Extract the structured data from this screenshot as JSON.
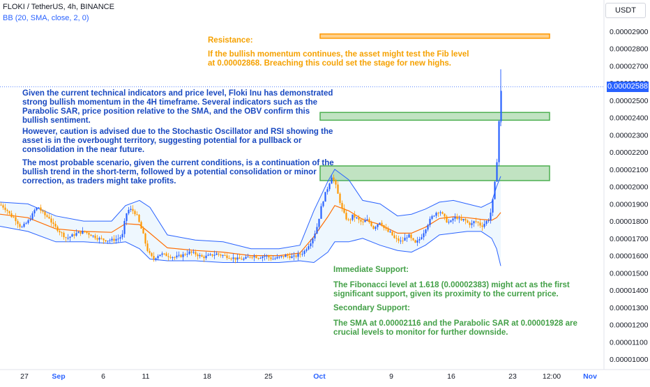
{
  "header": {
    "title": "FLOKI / TetherUS, 4h, BINANCE",
    "indicator": "BB (20, SMA, close, 2, 0)"
  },
  "currency": "USDT",
  "last_price": "0.00002588",
  "colors": {
    "up": "#2962ff",
    "down": "#ff9800",
    "bb_band": "#2962ff",
    "bb_basis": "#ff6d00",
    "bb_fill": "#e3f2fd",
    "resistance_zone": "#ff9800",
    "support_zone": "#4caf50",
    "text_blue": "#1848c0",
    "text_orange": "#f5a100",
    "text_green": "#43a047"
  },
  "annotations": {
    "resistance_title": "Resistance:",
    "resistance_text": "If the bullish momentum continues, the asset might test the Fib level\nat 0.00002868. Breaching this could set the stage for new highs.",
    "main_text_1": "Given the current technical indicators and price level, Floki Inu has demonstrated\nstrong bullish momentum in the 4H timeframe. Several indicators such as the\nParabolic SAR, price position relative to the SMA, and the OBV confirm this\nbullish sentiment.",
    "main_text_2": "However, caution is advised due to the Stochastic Oscillator and RSI showing the\nasset is in the overbought territory, suggesting potential for a pullback or\nconsolidation in the near future.",
    "main_text_3": "The most probable scenario, given the current conditions, is a continuation of the\nbullish trend in the short-term, followed by a potential consolidation or minor\ncorrection, as traders might take profits.",
    "immediate_support_title": "Immediate Support:",
    "immediate_support_text": "The Fibonacci level at 1.618 (0.00002383) might act as the first\nsignificant support, given its proximity to the current price.",
    "secondary_support_title": "Secondary Support:",
    "secondary_support_text": "The SMA at 0.00002116 and the Parabolic SAR at 0.00001928 are\ncrucial levels to monitor for further downside."
  },
  "chart_data": {
    "type": "candlestick",
    "y_axis_labels": [
      "0.00002900",
      "0.00002800",
      "0.00002700",
      "0.00002600",
      "0.00002500",
      "0.00002400",
      "0.00002300",
      "0.00002200",
      "0.00002100",
      "0.00002000",
      "0.00001900",
      "0.00001800",
      "0.00001700",
      "0.00001600",
      "0.00001500",
      "0.00001400",
      "0.00001300",
      "0.00001200",
      "0.00001100",
      "0.00001000"
    ],
    "y_axis_values": [
      2900,
      2800,
      2700,
      2600,
      2500,
      2400,
      2300,
      2200,
      2100,
      2000,
      1900,
      1800,
      1700,
      1600,
      1500,
      1400,
      1300,
      1200,
      1100,
      1000
    ],
    "x_axis_labels": [
      {
        "label": "27",
        "bold": false
      },
      {
        "label": "Sep",
        "bold": true
      },
      {
        "label": "6",
        "bold": false
      },
      {
        "label": "11",
        "bold": false
      },
      {
        "label": "18",
        "bold": false
      },
      {
        "label": "25",
        "bold": false
      },
      {
        "label": "Oct",
        "bold": true
      },
      {
        "label": "9",
        "bold": false
      },
      {
        "label": "16",
        "bold": false
      },
      {
        "label": "23",
        "bold": false
      },
      {
        "label": "12:00",
        "bold": false
      },
      {
        "label": "Nov",
        "bold": true
      }
    ],
    "y_range": [
      950,
      2960
    ],
    "zones": [
      {
        "name": "resistance",
        "from": 2860,
        "to": 2885,
        "color": "orange"
      },
      {
        "name": "support-1",
        "from": 2385,
        "to": 2430,
        "color": "green"
      },
      {
        "name": "support-2",
        "from": 2035,
        "to": 2120,
        "color": "green"
      }
    ],
    "price_path": [
      [
        0,
        1895
      ],
      [
        5,
        1880
      ],
      [
        10,
        1860
      ],
      [
        15,
        1830
      ],
      [
        20,
        1820
      ],
      [
        25,
        1790
      ],
      [
        30,
        1760
      ],
      [
        35,
        1780
      ],
      [
        40,
        1800
      ],
      [
        45,
        1830
      ],
      [
        50,
        1870
      ],
      [
        55,
        1880
      ],
      [
        60,
        1850
      ],
      [
        65,
        1830
      ],
      [
        70,
        1820
      ],
      [
        75,
        1780
      ],
      [
        80,
        1760
      ],
      [
        85,
        1740
      ],
      [
        90,
        1720
      ],
      [
        95,
        1700
      ],
      [
        100,
        1710
      ],
      [
        110,
        1730
      ],
      [
        120,
        1740
      ],
      [
        130,
        1720
      ],
      [
        140,
        1700
      ],
      [
        150,
        1690
      ],
      [
        160,
        1690
      ],
      [
        170,
        1700
      ],
      [
        175,
        1720
      ],
      [
        180,
        1840
      ],
      [
        185,
        1870
      ],
      [
        190,
        1860
      ],
      [
        195,
        1840
      ],
      [
        200,
        1780
      ],
      [
        205,
        1720
      ],
      [
        210,
        1640
      ],
      [
        215,
        1600
      ],
      [
        220,
        1580
      ],
      [
        225,
        1600
      ],
      [
        230,
        1610
      ],
      [
        240,
        1600
      ],
      [
        250,
        1590
      ],
      [
        260,
        1600
      ],
      [
        270,
        1620
      ],
      [
        280,
        1610
      ],
      [
        290,
        1590
      ],
      [
        300,
        1600
      ],
      [
        310,
        1610
      ],
      [
        320,
        1600
      ],
      [
        330,
        1590
      ],
      [
        340,
        1580
      ],
      [
        350,
        1580
      ],
      [
        360,
        1600
      ],
      [
        370,
        1590
      ],
      [
        380,
        1600
      ],
      [
        390,
        1580
      ],
      [
        400,
        1590
      ],
      [
        410,
        1600
      ],
      [
        420,
        1590
      ],
      [
        430,
        1610
      ],
      [
        435,
        1620
      ],
      [
        440,
        1650
      ],
      [
        445,
        1680
      ],
      [
        450,
        1720
      ],
      [
        455,
        1780
      ],
      [
        460,
        1880
      ],
      [
        465,
        1950
      ],
      [
        470,
        2000
      ],
      [
        475,
        2060
      ],
      [
        480,
        2020
      ],
      [
        485,
        1940
      ],
      [
        490,
        1870
      ],
      [
        495,
        1820
      ],
      [
        500,
        1800
      ],
      [
        505,
        1830
      ],
      [
        510,
        1820
      ],
      [
        515,
        1800
      ],
      [
        520,
        1790
      ],
      [
        525,
        1810
      ],
      [
        530,
        1790
      ],
      [
        535,
        1760
      ],
      [
        540,
        1780
      ],
      [
        545,
        1800
      ],
      [
        550,
        1760
      ],
      [
        555,
        1740
      ],
      [
        560,
        1730
      ],
      [
        565,
        1700
      ],
      [
        570,
        1690
      ],
      [
        575,
        1680
      ],
      [
        580,
        1700
      ],
      [
        585,
        1720
      ],
      [
        590,
        1690
      ],
      [
        595,
        1670
      ],
      [
        600,
        1690
      ],
      [
        605,
        1720
      ],
      [
        610,
        1760
      ],
      [
        615,
        1800
      ],
      [
        620,
        1830
      ],
      [
        625,
        1850
      ],
      [
        630,
        1860
      ],
      [
        635,
        1830
      ],
      [
        640,
        1800
      ],
      [
        645,
        1790
      ],
      [
        650,
        1820
      ],
      [
        655,
        1820
      ],
      [
        660,
        1800
      ],
      [
        665,
        1810
      ],
      [
        670,
        1790
      ],
      [
        675,
        1780
      ],
      [
        680,
        1800
      ],
      [
        685,
        1790
      ],
      [
        690,
        1770
      ],
      [
        695,
        1790
      ],
      [
        700,
        1810
      ],
      [
        703,
        1850
      ],
      [
        706,
        1920
      ],
      [
        709,
        2020
      ],
      [
        712,
        2150
      ],
      [
        715,
        2380
      ],
      [
        718,
        2550
      ],
      [
        720,
        2600
      ]
    ],
    "bb_upper": [
      [
        0,
        1910
      ],
      [
        40,
        1900
      ],
      [
        80,
        1830
      ],
      [
        120,
        1800
      ],
      [
        160,
        1800
      ],
      [
        180,
        1890
      ],
      [
        200,
        1920
      ],
      [
        215,
        1880
      ],
      [
        240,
        1720
      ],
      [
        280,
        1690
      ],
      [
        320,
        1680
      ],
      [
        360,
        1640
      ],
      [
        400,
        1640
      ],
      [
        430,
        1660
      ],
      [
        450,
        1860
      ],
      [
        470,
        2030
      ],
      [
        480,
        2100
      ],
      [
        500,
        2040
      ],
      [
        520,
        1920
      ],
      [
        545,
        1900
      ],
      [
        570,
        1830
      ],
      [
        590,
        1840
      ],
      [
        610,
        1870
      ],
      [
        630,
        1910
      ],
      [
        650,
        1920
      ],
      [
        670,
        1900
      ],
      [
        690,
        1880
      ],
      [
        705,
        1910
      ],
      [
        712,
        2000
      ],
      [
        718,
        2060
      ]
    ],
    "bb_lower": [
      [
        0,
        1770
      ],
      [
        40,
        1740
      ],
      [
        80,
        1680
      ],
      [
        120,
        1680
      ],
      [
        160,
        1670
      ],
      [
        180,
        1680
      ],
      [
        200,
        1640
      ],
      [
        215,
        1580
      ],
      [
        240,
        1570
      ],
      [
        280,
        1570
      ],
      [
        320,
        1560
      ],
      [
        360,
        1560
      ],
      [
        400,
        1560
      ],
      [
        430,
        1570
      ],
      [
        450,
        1560
      ],
      [
        470,
        1620
      ],
      [
        480,
        1680
      ],
      [
        500,
        1680
      ],
      [
        520,
        1700
      ],
      [
        545,
        1660
      ],
      [
        570,
        1630
      ],
      [
        590,
        1620
      ],
      [
        610,
        1660
      ],
      [
        630,
        1720
      ],
      [
        650,
        1730
      ],
      [
        670,
        1740
      ],
      [
        690,
        1740
      ],
      [
        705,
        1700
      ],
      [
        712,
        1640
      ],
      [
        718,
        1540
      ]
    ],
    "bb_basis": [
      [
        0,
        1840
      ],
      [
        40,
        1820
      ],
      [
        80,
        1755
      ],
      [
        120,
        1740
      ],
      [
        160,
        1735
      ],
      [
        180,
        1785
      ],
      [
        200,
        1780
      ],
      [
        215,
        1730
      ],
      [
        240,
        1645
      ],
      [
        280,
        1630
      ],
      [
        320,
        1620
      ],
      [
        360,
        1600
      ],
      [
        400,
        1600
      ],
      [
        430,
        1615
      ],
      [
        450,
        1710
      ],
      [
        470,
        1825
      ],
      [
        480,
        1890
      ],
      [
        500,
        1860
      ],
      [
        520,
        1810
      ],
      [
        545,
        1780
      ],
      [
        570,
        1730
      ],
      [
        590,
        1730
      ],
      [
        610,
        1765
      ],
      [
        630,
        1815
      ],
      [
        650,
        1825
      ],
      [
        670,
        1820
      ],
      [
        690,
        1810
      ],
      [
        705,
        1805
      ],
      [
        712,
        1820
      ],
      [
        718,
        1850
      ]
    ]
  }
}
